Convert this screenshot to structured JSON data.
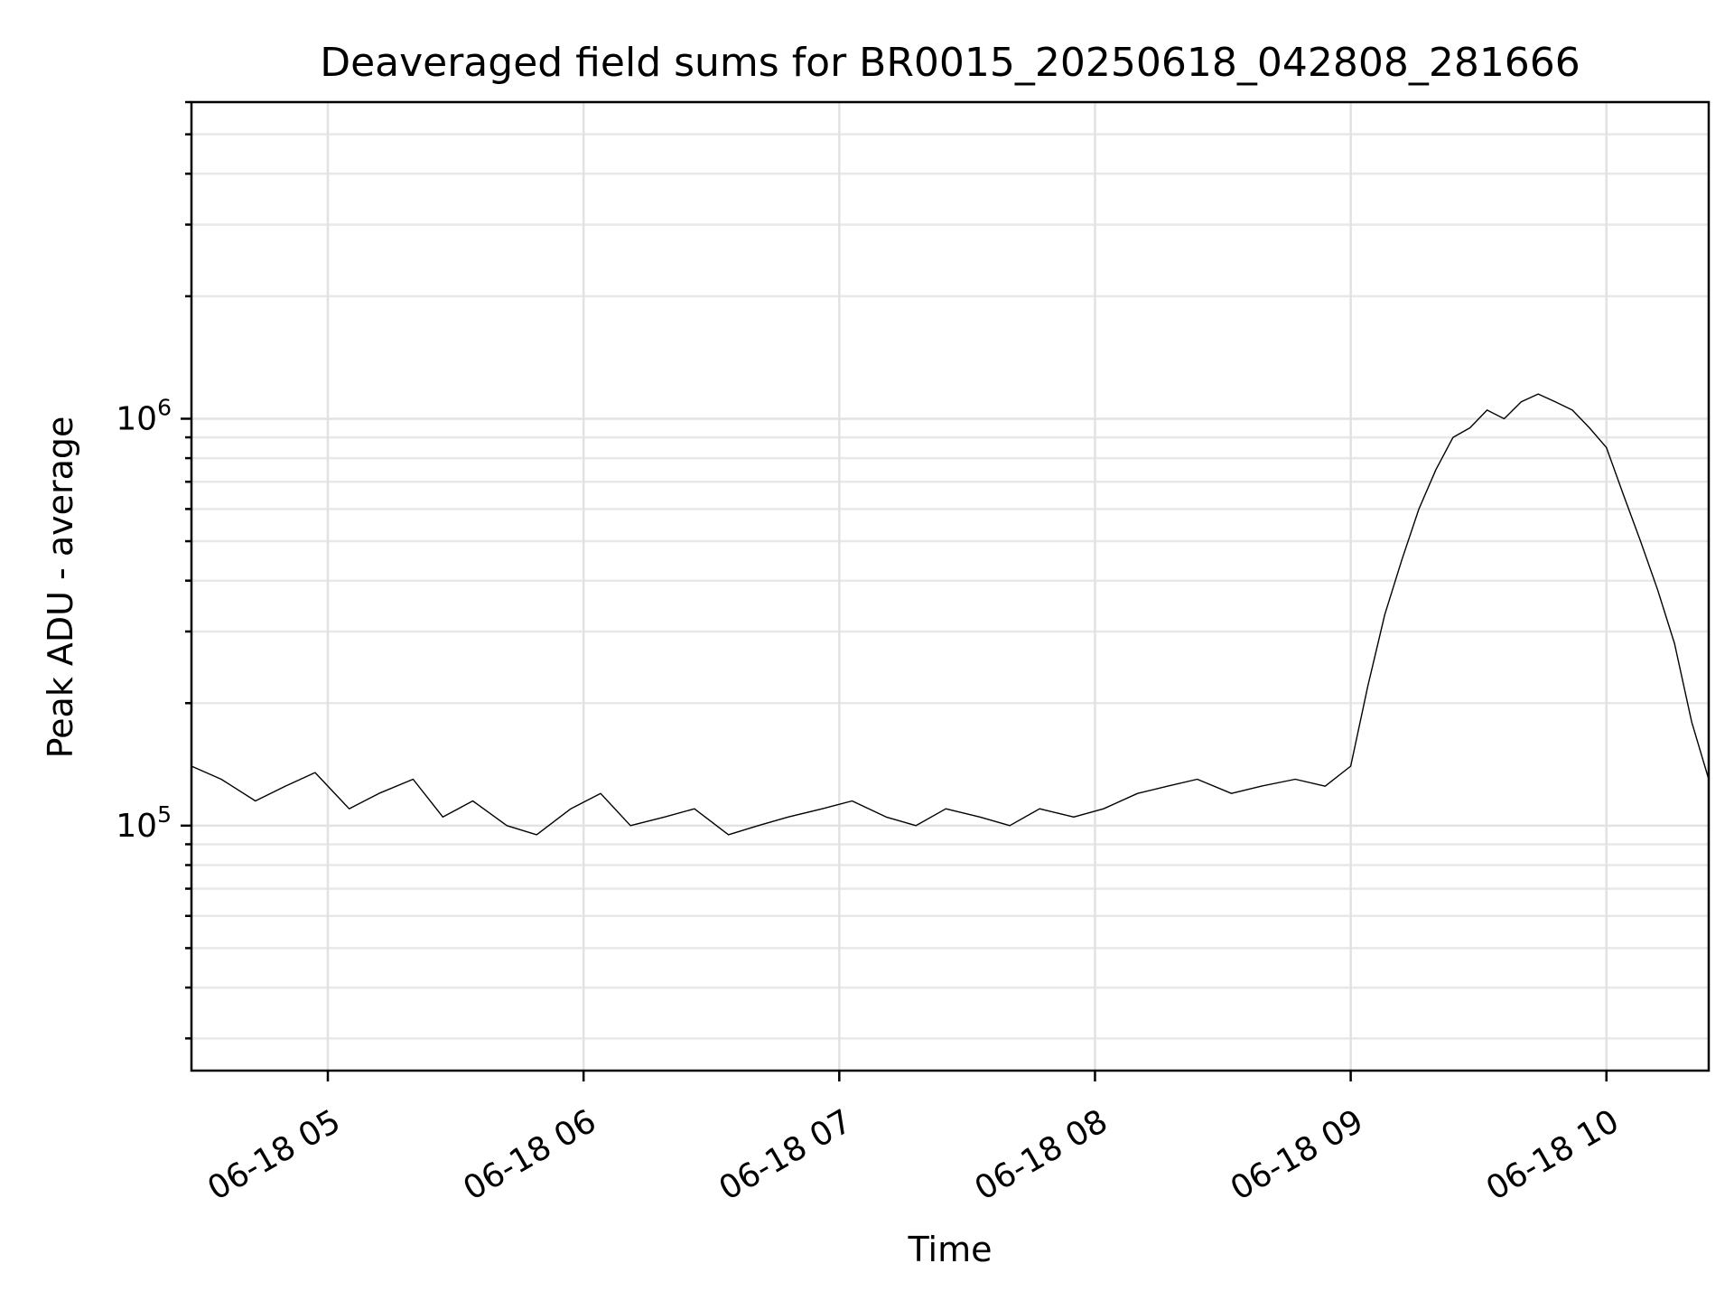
{
  "chart_data": {
    "type": "line",
    "title": "Deaveraged field sums for BR0015_20250618_042808_281666",
    "xlabel": "Time",
    "ylabel": "Peak ADU - average",
    "yscale": "log",
    "ylim": [
      25000,
      6000000
    ],
    "xlim": [
      "2025-06-18 04:28",
      "2025-06-18 10:24"
    ],
    "x_ticks": [
      "06-18 05",
      "06-18 06",
      "06-18 07",
      "06-18 08",
      "06-18 09",
      "06-18 10"
    ],
    "x_tick_times": [
      "2025-06-18 05:00",
      "2025-06-18 06:00",
      "2025-06-18 07:00",
      "2025-06-18 08:00",
      "2025-06-18 09:00",
      "2025-06-18 10:00"
    ],
    "y_ticks": [
      {
        "base": "10",
        "exp": "5",
        "value": 100000
      },
      {
        "base": "10",
        "exp": "6",
        "value": 1000000
      }
    ],
    "grid": true,
    "line_color": "#000000",
    "series": [
      {
        "x": [
          "2025-06-18 04:28",
          "2025-06-18 04:35",
          "2025-06-18 04:43",
          "2025-06-18 04:50",
          "2025-06-18 04:57",
          "2025-06-18 05:05",
          "2025-06-18 05:12",
          "2025-06-18 05:20",
          "2025-06-18 05:27",
          "2025-06-18 05:34",
          "2025-06-18 05:42",
          "2025-06-18 05:49",
          "2025-06-18 05:57",
          "2025-06-18 06:04",
          "2025-06-18 06:11",
          "2025-06-18 06:19",
          "2025-06-18 06:26",
          "2025-06-18 06:34",
          "2025-06-18 06:41",
          "2025-06-18 06:48",
          "2025-06-18 06:56",
          "2025-06-18 07:03",
          "2025-06-18 07:11",
          "2025-06-18 07:18",
          "2025-06-18 07:25",
          "2025-06-18 07:33",
          "2025-06-18 07:40",
          "2025-06-18 07:47",
          "2025-06-18 07:55",
          "2025-06-18 08:02",
          "2025-06-18 08:10",
          "2025-06-18 08:17",
          "2025-06-18 08:24",
          "2025-06-18 08:32",
          "2025-06-18 08:39",
          "2025-06-18 08:47",
          "2025-06-18 08:54",
          "2025-06-18 09:00",
          "2025-06-18 09:04",
          "2025-06-18 09:08",
          "2025-06-18 09:12",
          "2025-06-18 09:16",
          "2025-06-18 09:20",
          "2025-06-18 09:24",
          "2025-06-18 09:28",
          "2025-06-18 09:32",
          "2025-06-18 09:36",
          "2025-06-18 09:40",
          "2025-06-18 09:44",
          "2025-06-18 09:48",
          "2025-06-18 09:52",
          "2025-06-18 09:56",
          "2025-06-18 10:00",
          "2025-06-18 10:04",
          "2025-06-18 10:08",
          "2025-06-18 10:12",
          "2025-06-18 10:16",
          "2025-06-18 10:20",
          "2025-06-18 10:24"
        ],
        "y": [
          140000,
          130000,
          115000,
          125000,
          135000,
          110000,
          120000,
          130000,
          105000,
          115000,
          100000,
          95000,
          110000,
          120000,
          100000,
          105000,
          110000,
          95000,
          100000,
          105000,
          110000,
          115000,
          105000,
          100000,
          110000,
          105000,
          100000,
          110000,
          105000,
          110000,
          120000,
          125000,
          130000,
          120000,
          125000,
          130000,
          125000,
          140000,
          220000,
          330000,
          450000,
          600000,
          750000,
          900000,
          950000,
          1050000,
          1000000,
          1100000,
          1150000,
          1100000,
          1050000,
          950000,
          850000,
          650000,
          500000,
          380000,
          280000,
          180000,
          130000
        ]
      }
    ]
  }
}
